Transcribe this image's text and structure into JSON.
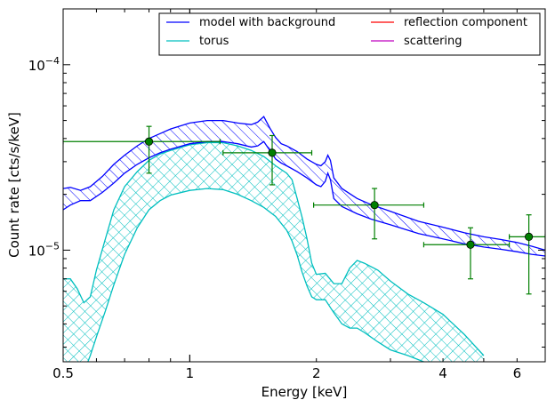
{
  "chart_data": {
    "type": "line",
    "xlabel": "Energy [keV]",
    "ylabel": "Count rate [cts/s/keV]",
    "x_scale": "log",
    "y_scale": "log",
    "xlim": [
      0.5,
      7.0
    ],
    "ylim": [
      2.5e-06,
      0.0002
    ],
    "x_tick_labels": [
      {
        "value": 0.5,
        "label": "0.5"
      },
      {
        "value": 1,
        "label": "1"
      },
      {
        "value": 2,
        "label": "2"
      },
      {
        "value": 4,
        "label": "4"
      },
      {
        "value": 6,
        "label": "6"
      }
    ],
    "y_tick_labels": [
      {
        "value": 0.0001,
        "base": "10",
        "exp": "−4"
      },
      {
        "value": 1e-05,
        "base": "10",
        "exp": "−5"
      }
    ],
    "legend": {
      "position": "top-right",
      "columns": 2,
      "entries": [
        {
          "label": "model with background",
          "color": "#0000ff"
        },
        {
          "label": "reflection component",
          "color": "#ff0000"
        },
        {
          "label": "torus",
          "color": "#00bfbf"
        },
        {
          "label": "scattering",
          "color": "#bf00bf"
        }
      ]
    },
    "series": [
      {
        "name": "model with background",
        "color": "#0000ff",
        "hatch": "diagonal",
        "x": [
          0.5,
          0.52,
          0.55,
          0.58,
          0.62,
          0.66,
          0.7,
          0.75,
          0.8,
          0.85,
          0.9,
          1.0,
          1.1,
          1.2,
          1.3,
          1.4,
          1.45,
          1.5,
          1.55,
          1.6,
          1.65,
          1.7,
          1.8,
          1.9,
          2.0,
          2.05,
          2.1,
          2.13,
          2.16,
          2.2,
          2.3,
          2.5,
          2.7,
          3.0,
          3.5,
          4.0,
          4.5,
          5.0,
          5.5,
          6.0,
          6.5,
          7.0
        ],
        "lower": [
          1.65e-05,
          1.75e-05,
          1.85e-05,
          1.85e-05,
          2.05e-05,
          2.3e-05,
          2.6e-05,
          2.9e-05,
          3.15e-05,
          3.35e-05,
          3.5e-05,
          3.75e-05,
          3.85e-05,
          3.85e-05,
          3.75e-05,
          3.6e-05,
          3.65e-05,
          3.85e-05,
          3.45e-05,
          3.1e-05,
          2.95e-05,
          2.85e-05,
          2.65e-05,
          2.45e-05,
          2.25e-05,
          2.2e-05,
          2.35e-05,
          2.6e-05,
          2.4e-05,
          1.9e-05,
          1.72e-05,
          1.57e-05,
          1.47e-05,
          1.37e-05,
          1.23e-05,
          1.15e-05,
          1.08e-05,
          1.04e-05,
          1.01e-05,
          9.8e-06,
          9.5e-06,
          9.3e-06
        ],
        "upper": [
          2.15e-05,
          2.18e-05,
          2.1e-05,
          2.2e-05,
          2.5e-05,
          2.9e-05,
          3.25e-05,
          3.65e-05,
          4e-05,
          4.25e-05,
          4.5e-05,
          4.85e-05,
          5e-05,
          5e-05,
          4.85e-05,
          4.75e-05,
          4.9e-05,
          5.25e-05,
          4.55e-05,
          4.05e-05,
          3.75e-05,
          3.65e-05,
          3.4e-05,
          3.1e-05,
          2.9e-05,
          2.85e-05,
          3e-05,
          3.25e-05,
          3.05e-05,
          2.45e-05,
          2.15e-05,
          1.9e-05,
          1.76e-05,
          1.62e-05,
          1.43e-05,
          1.33e-05,
          1.24e-05,
          1.18e-05,
          1.14e-05,
          1.1e-05,
          1.05e-05,
          1e-05
        ]
      },
      {
        "name": "torus",
        "color": "#00bfbf",
        "hatch": "cross",
        "x": [
          0.5,
          0.52,
          0.54,
          0.56,
          0.58,
          0.6,
          0.63,
          0.66,
          0.7,
          0.75,
          0.8,
          0.85,
          0.9,
          1.0,
          1.1,
          1.2,
          1.3,
          1.4,
          1.5,
          1.6,
          1.7,
          1.75,
          1.8,
          1.85,
          1.9,
          1.95,
          2.0,
          2.1,
          2.2,
          2.3,
          2.4,
          2.5,
          2.6,
          2.8,
          3.0,
          3.3,
          3.6,
          4.0,
          4.5,
          5.0
        ],
        "lower": [
          1.5e-06,
          2e-06,
          2e-06,
          2.2e-06,
          2.7e-06,
          3.4e-06,
          4.7e-06,
          6.5e-06,
          9.5e-06,
          1.32e-05,
          1.65e-05,
          1.85e-05,
          1.98e-05,
          2.1e-05,
          2.15e-05,
          2.12e-05,
          2e-05,
          1.85e-05,
          1.7e-05,
          1.52e-05,
          1.28e-05,
          1.12e-05,
          9.4e-06,
          7.6e-06,
          6.4e-06,
          5.6e-06,
          5.4e-06,
          5.4e-06,
          4.6e-06,
          4e-06,
          3.8e-06,
          3.8e-06,
          3.6e-06,
          3.2e-06,
          2.9e-06,
          2.7e-06,
          2.5e-06,
          2.3e-06,
          2e-06,
          1.7e-06
        ],
        "upper": [
          7e-06,
          7e-06,
          6.2e-06,
          5.2e-06,
          5.6e-06,
          7.8e-06,
          1.15e-05,
          1.65e-05,
          2.2e-05,
          2.65e-05,
          3.05e-05,
          3.3e-05,
          3.45e-05,
          3.7e-05,
          3.8e-05,
          3.8e-05,
          3.65e-05,
          3.45e-05,
          3.2e-05,
          2.85e-05,
          2.6e-05,
          2.4e-05,
          1.9e-05,
          1.5e-05,
          1.15e-05,
          8.5e-06,
          7.4e-06,
          7.5e-06,
          6.6e-06,
          6.6e-06,
          8e-06,
          8.8e-06,
          8.5e-06,
          7.8e-06,
          6.8e-06,
          5.8e-06,
          5.2e-06,
          4.5e-06,
          3.5e-06,
          2.7e-06
        ]
      },
      {
        "name": "reflection component",
        "color": "#ff0000",
        "x": [],
        "y": []
      },
      {
        "name": "scattering",
        "color": "#bf00bf",
        "x": [],
        "y": []
      }
    ],
    "data_points": {
      "color": "#007f00",
      "points": [
        {
          "x": 0.8,
          "y": 3.85e-05,
          "xlo": 0.5,
          "xhi": 1.18,
          "ylo": 2.6e-05,
          "yhi": 4.65e-05
        },
        {
          "x": 1.57,
          "y": 3.35e-05,
          "xlo": 1.2,
          "xhi": 1.95,
          "ylo": 2.25e-05,
          "yhi": 4.15e-05
        },
        {
          "x": 2.75,
          "y": 1.75e-05,
          "xlo": 1.97,
          "xhi": 3.6,
          "ylo": 1.15e-05,
          "yhi": 2.15e-05
        },
        {
          "x": 4.65,
          "y": 1.07e-05,
          "xlo": 3.6,
          "xhi": 5.75,
          "ylo": 7e-06,
          "yhi": 1.32e-05
        },
        {
          "x": 6.4,
          "y": 1.18e-05,
          "xlo": 5.75,
          "xhi": 7.0,
          "ylo": 5.8e-06,
          "yhi": 1.55e-05
        }
      ]
    }
  }
}
